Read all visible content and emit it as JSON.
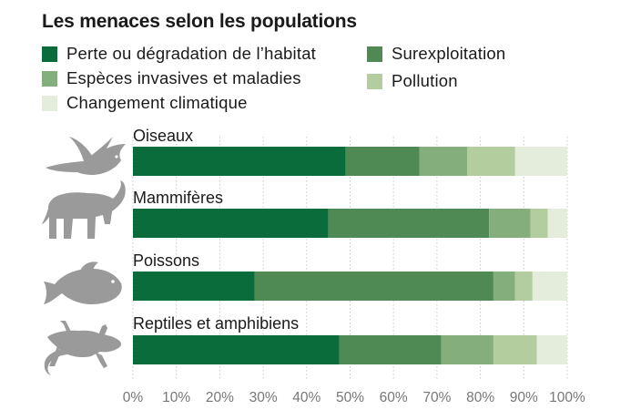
{
  "chart_data": {
    "type": "bar",
    "orientation": "horizontal",
    "stacked": true,
    "title": "Les menaces selon les populations",
    "categories": [
      "Oiseaux",
      "Mammifères",
      "Poissons",
      "Reptiles et amphibiens"
    ],
    "series": [
      {
        "name": "Perte ou dégradation de l’habitat",
        "color": "#0a6b3b",
        "values": [
          49,
          45,
          28,
          47.5
        ]
      },
      {
        "name": "Surexploitation",
        "color": "#4f8a55",
        "values": [
          17,
          37,
          55,
          23.5
        ]
      },
      {
        "name": "Espèces invasives et maladies",
        "color": "#85ae7d",
        "values": [
          11,
          9.5,
          5,
          12
        ]
      },
      {
        "name": "Pollution",
        "color": "#b3cd9f",
        "values": [
          11,
          4,
          4,
          10
        ]
      },
      {
        "name": "Changement climatique",
        "color": "#e4ecdb",
        "values": [
          12,
          4.5,
          8,
          7
        ]
      }
    ],
    "xlim": [
      0,
      100
    ],
    "xticks": [
      "0%",
      "10%",
      "20%",
      "30%",
      "40%",
      "50%",
      "60%",
      "70%",
      "80%",
      "90%",
      "100%"
    ],
    "grid": true,
    "legend_position": "top",
    "icon_color": "#9a9a9a",
    "icons": [
      "bird-icon",
      "elephant-icon",
      "fish-icon",
      "lizard-icon"
    ]
  }
}
